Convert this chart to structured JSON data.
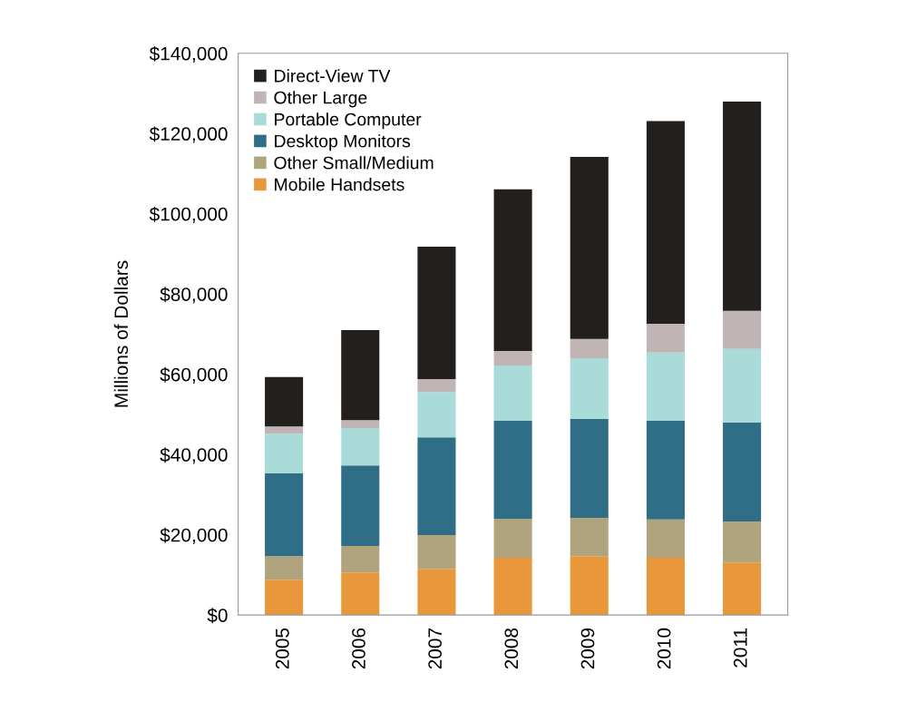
{
  "chart_data": {
    "type": "bar",
    "stacked": true,
    "ylabel": "Millions of Dollars",
    "categories": [
      "2005",
      "2006",
      "2007",
      "2008",
      "2009",
      "2010",
      "2011"
    ],
    "series": [
      {
        "name": "Mobile Handsets",
        "color": "#e8973a",
        "values": [
          8800,
          10600,
          11500,
          14300,
          14700,
          14300,
          13100
        ]
      },
      {
        "name": "Other Small/Medium",
        "color": "#b0a47e",
        "values": [
          5900,
          6600,
          8400,
          9700,
          9500,
          9500,
          10200
        ]
      },
      {
        "name": "Desktop Monitors",
        "color": "#2f6e86",
        "values": [
          20600,
          20100,
          24400,
          24400,
          24700,
          24600,
          24700
        ]
      },
      {
        "name": "Portable Computer",
        "color": "#a9dcd8",
        "values": [
          9900,
          9300,
          11300,
          13800,
          15100,
          17000,
          18300
        ]
      },
      {
        "name": "Other Large",
        "color": "#c0b4b4",
        "values": [
          1800,
          2000,
          3200,
          3600,
          4800,
          7200,
          9500
        ]
      },
      {
        "name": "Direct-View TV",
        "color": "#231f1c",
        "values": [
          12300,
          22400,
          33000,
          40300,
          45400,
          50500,
          52200
        ]
      }
    ],
    "ylim": [
      0,
      140000
    ],
    "yticks": [
      {
        "value": 0,
        "label": "$0"
      },
      {
        "value": 20000,
        "label": "$20,000"
      },
      {
        "value": 40000,
        "label": "$40,000"
      },
      {
        "value": 60000,
        "label": "$60,000"
      },
      {
        "value": 80000,
        "label": "$80,000"
      },
      {
        "value": 100000,
        "label": "$100,000"
      },
      {
        "value": 120000,
        "label": "$120,000"
      },
      {
        "value": 140000,
        "label": "$140,000"
      }
    ],
    "legend": "top left",
    "grid": false
  }
}
